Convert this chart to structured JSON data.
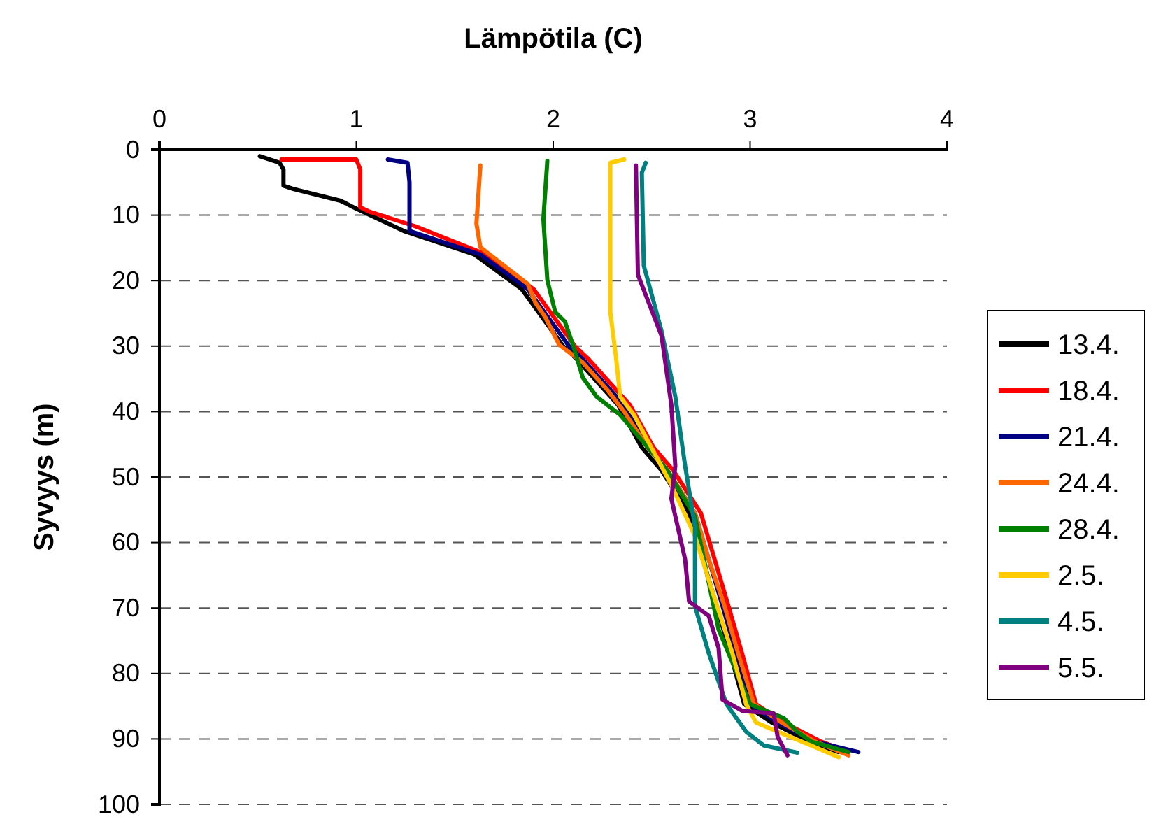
{
  "chart_data": {
    "type": "line",
    "title": "Lämpötila (C)",
    "ylabel": "Syvyys (m)",
    "xlim": [
      0,
      4
    ],
    "xticks": [
      0,
      1,
      2,
      3,
      4
    ],
    "ylim": [
      100,
      0
    ],
    "yticks": [
      0,
      10,
      20,
      30,
      40,
      50,
      60,
      70,
      80,
      90,
      100
    ],
    "grid": "y",
    "legend": "right",
    "marker": "none",
    "line_style": "solid",
    "series": [
      {
        "name": "13.4.",
        "color": "#000000",
        "x": [
          0.51,
          0.61,
          0.63,
          0.63,
          0.68,
          0.92,
          1.0,
          1.24,
          1.6,
          1.84,
          2.05,
          2.12,
          2.24,
          2.33,
          2.45,
          2.55,
          2.69,
          2.76,
          2.83,
          2.9,
          2.97,
          3.11,
          3.3,
          3.45
        ],
        "values": [
          1,
          2,
          3,
          5.5,
          6,
          7.8,
          9,
          12.4,
          16,
          21.3,
          30,
          32,
          36,
          39,
          45.5,
          49,
          55.5,
          62.6,
          69.7,
          77,
          84.7,
          87.5,
          90.4,
          92
        ]
      },
      {
        "name": "18.4.",
        "color": "#ff0000",
        "x": [
          0.62,
          1.0,
          1.02,
          1.02,
          1.07,
          1.3,
          1.66,
          1.9,
          2.11,
          2.18,
          2.3,
          2.39,
          2.51,
          2.61,
          2.75,
          2.82,
          2.89,
          2.96,
          3.03,
          3.17,
          3.36,
          3.5
        ],
        "values": [
          1.5,
          1.5,
          3,
          8.8,
          9.5,
          11.7,
          16,
          21.3,
          30,
          32,
          36,
          39,
          45.5,
          49,
          55.5,
          62.6,
          69.7,
          77,
          84.7,
          87.5,
          90.4,
          92
        ]
      },
      {
        "name": "21.4.",
        "color": "#000080",
        "x": [
          1.16,
          1.26,
          1.27,
          1.27,
          1.63,
          1.87,
          2.08,
          2.15,
          2.27,
          2.36,
          2.48,
          2.58,
          2.72,
          2.79,
          2.86,
          2.93,
          3.0,
          3.14,
          3.33,
          3.55
        ],
        "values": [
          1.5,
          2,
          5,
          12.4,
          16,
          21.3,
          30,
          32,
          36,
          39,
          45.5,
          49,
          55.5,
          62.6,
          69.7,
          77,
          84.7,
          87.5,
          90.4,
          92
        ]
      },
      {
        "name": "24.4.",
        "color": "#ff6600",
        "x": [
          1.63,
          1.61,
          1.63,
          1.75,
          1.87,
          1.91,
          1.96,
          2.03,
          2.15,
          2.27,
          2.36,
          2.48,
          2.58,
          2.72,
          2.79,
          2.87,
          2.94,
          3.02,
          3.16,
          3.33,
          3.5
        ],
        "values": [
          2.4,
          11.3,
          14.9,
          17.7,
          20.5,
          23.4,
          25.6,
          29.8,
          32.5,
          36.5,
          40,
          45.5,
          49,
          55.5,
          62.6,
          69.7,
          77,
          84.7,
          87.5,
          90.4,
          92.5
        ]
      },
      {
        "name": "28.4.",
        "color": "#008000",
        "x": [
          1.97,
          1.95,
          1.97,
          2.01,
          2.06,
          2.1,
          2.15,
          2.22,
          2.34,
          2.58,
          2.72,
          2.84,
          3.0,
          3.17,
          3.24,
          3.31,
          3.5
        ],
        "values": [
          1.7,
          10.6,
          19.9,
          24.8,
          26.3,
          29.8,
          34.8,
          37.7,
          40.5,
          49,
          56,
          73.3,
          84.7,
          86.8,
          88.9,
          90.4,
          92
        ]
      },
      {
        "name": "2.5.",
        "color": "#ffcc00",
        "x": [
          2.36,
          2.29,
          2.29,
          2.32,
          2.34,
          2.41,
          2.6,
          2.72,
          2.81,
          2.91,
          2.98,
          3.03,
          3.14,
          3.31,
          3.45
        ],
        "values": [
          1.5,
          2,
          24.8,
          32,
          37.7,
          40.5,
          51.2,
          59,
          67.6,
          76.9,
          84.7,
          87.5,
          88.9,
          91,
          92.8
        ]
      },
      {
        "name": "4.5.",
        "color": "#008080",
        "x": [
          2.47,
          2.45,
          2.46,
          2.48,
          2.55,
          2.62,
          2.67,
          2.72,
          2.72,
          2.79,
          2.88,
          2.98,
          3.07,
          3.24
        ],
        "values": [
          2,
          3.5,
          17.7,
          19.9,
          27.7,
          37.7,
          48.3,
          57.6,
          69.7,
          76.9,
          84.7,
          88.9,
          91,
          92.1
        ]
      },
      {
        "name": "5.5.",
        "color": "#800080",
        "x": [
          2.42,
          2.43,
          2.55,
          2.6,
          2.62,
          2.6,
          2.67,
          2.69,
          2.79,
          2.84,
          2.86,
          2.96,
          3.12,
          3.14,
          3.19
        ],
        "values": [
          2.4,
          19.1,
          28.4,
          39,
          48.3,
          53.3,
          62.6,
          69,
          71.2,
          76.1,
          84,
          85.7,
          86.1,
          89.7,
          92.5
        ]
      }
    ]
  }
}
